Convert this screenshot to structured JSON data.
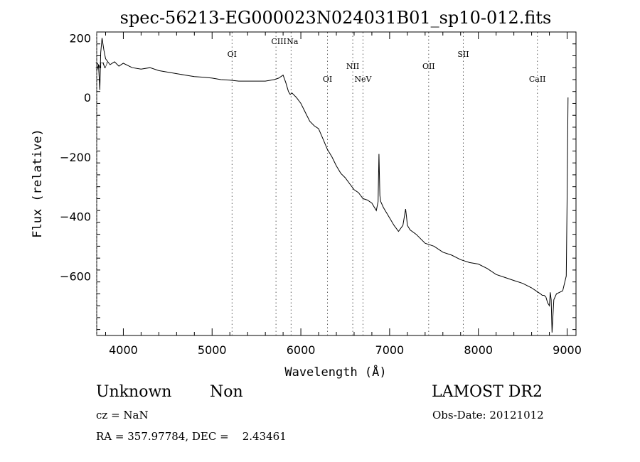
{
  "chart_data": {
    "type": "line",
    "title": "spec-56213-EG000023N024031B01_sp10-012.fits",
    "xlabel": "Wavelength (Å)",
    "ylabel": "Flux (relative)",
    "xlim": [
      3700,
      9100
    ],
    "ylim": [
      -800,
      220
    ],
    "xticks": [
      4000,
      5000,
      6000,
      7000,
      8000,
      9000
    ],
    "xtick_labels": [
      "4000",
      "5000",
      "6000",
      "7000",
      "8000",
      "9000"
    ],
    "yticks": [
      200,
      0,
      -200,
      -400,
      -600
    ],
    "ytick_labels": [
      "200",
      "0",
      "−200",
      "−400",
      "−600"
    ],
    "grid": false,
    "series": [
      {
        "x": [
          3700,
          3720,
          3735,
          3745,
          3760,
          3780,
          3800,
          3850,
          3900,
          3950,
          4000,
          4100,
          4200,
          4300,
          4400,
          4500,
          4600,
          4700,
          4800,
          4900,
          5000,
          5100,
          5200,
          5300,
          5400,
          5500,
          5600,
          5700,
          5750,
          5800,
          5830,
          5860,
          5880,
          5900,
          5950,
          6000,
          6050,
          6100,
          6150,
          6200,
          6250,
          6300,
          6350,
          6400,
          6450,
          6500,
          6550,
          6600,
          6650,
          6700,
          6750,
          6800,
          6850,
          6870,
          6880,
          6890,
          6900,
          6930,
          6960,
          7000,
          7050,
          7100,
          7150,
          7180,
          7190,
          7200,
          7230,
          7300,
          7400,
          7500,
          7600,
          7700,
          7800,
          7900,
          8000,
          8100,
          8200,
          8300,
          8400,
          8500,
          8600,
          8650,
          8700,
          8720,
          8740,
          8760,
          8780,
          8800,
          8810,
          8820,
          8830,
          8850,
          8880,
          8950,
          8990,
          9000,
          9010
        ],
        "y": [
          90,
          110,
          25,
          150,
          200,
          160,
          130,
          110,
          120,
          105,
          115,
          100,
          95,
          100,
          90,
          85,
          80,
          75,
          70,
          68,
          65,
          60,
          58,
          55,
          55,
          55,
          55,
          60,
          65,
          75,
          50,
          20,
          10,
          15,
          0,
          -20,
          -50,
          -80,
          -95,
          -105,
          -140,
          -175,
          -200,
          -230,
          -255,
          -270,
          -290,
          -310,
          -320,
          -340,
          -345,
          -355,
          -380,
          -350,
          -190,
          -330,
          -350,
          -370,
          -385,
          -405,
          -430,
          -450,
          -430,
          -375,
          -400,
          -430,
          -445,
          -460,
          -490,
          -500,
          -520,
          -530,
          -545,
          -555,
          -560,
          -575,
          -595,
          -605,
          -615,
          -625,
          -640,
          -650,
          -660,
          -665,
          -665,
          -670,
          -690,
          -700,
          -655,
          -680,
          -790,
          -680,
          -660,
          -650,
          -600,
          -340,
          0
        ]
      }
    ],
    "line_annotations": [
      {
        "label": "NV",
        "x": 3700
      },
      {
        "label": "OI",
        "x": 5225
      },
      {
        "label": "CIII",
        "x": 5720
      },
      {
        "label": "Na",
        "x": 5890
      },
      {
        "label": "OI",
        "x": 6300
      },
      {
        "label": "NII",
        "x": 6585
      },
      {
        "label": "NeV",
        "x": 6700
      },
      {
        "label": "OII",
        "x": 7440
      },
      {
        "label": "SII",
        "x": 7830
      },
      {
        "label": "CaII",
        "x": 8665
      }
    ]
  },
  "info": {
    "object_type": "Unknown",
    "subclass": "Non",
    "survey": "LAMOST DR2",
    "cz": "cz = NaN",
    "obs_date": "Obs-Date: 20121012",
    "coords": "RA = 357.97784, DEC =    2.43461"
  }
}
